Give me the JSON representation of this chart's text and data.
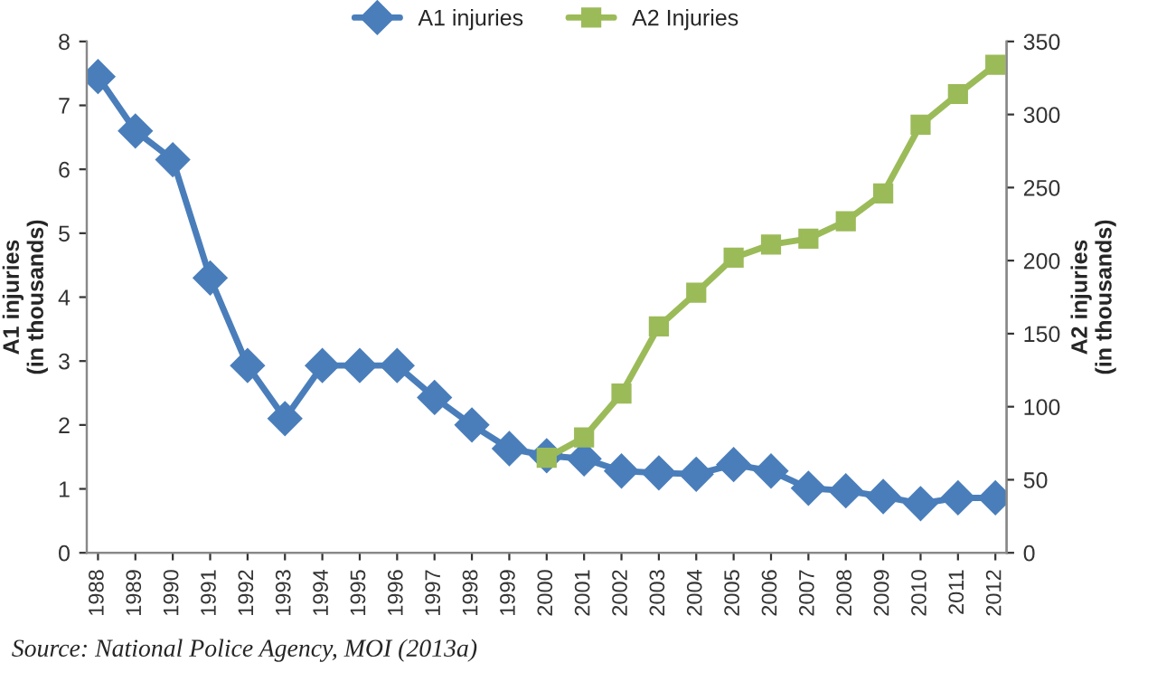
{
  "chart_data": {
    "type": "line",
    "ylabel": "A1 injuries\n(in thousands)",
    "y2label": "A2 injuries\n(in thousands)",
    "categories": [
      "1988",
      "1989",
      "1990",
      "1991",
      "1992",
      "1993",
      "1994",
      "1995",
      "1996",
      "1997",
      "1998",
      "1999",
      "2000",
      "2001",
      "2002",
      "2003",
      "2004",
      "2005",
      "2006",
      "2007",
      "2008",
      "2009",
      "2010",
      "2011",
      "2012"
    ],
    "series": [
      {
        "name": "A1 injuries",
        "color": "#4a7ebb",
        "marker": "diamond",
        "values": [
          7.45,
          6.6,
          6.15,
          4.3,
          2.93,
          2.1,
          2.93,
          2.93,
          2.93,
          2.43,
          2.0,
          1.63,
          1.52,
          1.47,
          1.28,
          1.25,
          1.23,
          1.38,
          1.28,
          1.01,
          0.97,
          0.88,
          0.77,
          0.86,
          0.86
        ]
      },
      {
        "name": "A2 Injuries",
        "color": "#9bbb59",
        "marker": "square",
        "axis": "y2",
        "values": [
          null,
          null,
          null,
          null,
          null,
          null,
          null,
          null,
          null,
          null,
          null,
          null,
          65,
          79,
          109,
          155,
          178,
          202,
          211,
          215,
          227,
          246,
          293,
          314,
          334
        ]
      }
    ],
    "ylim": [
      0,
      8
    ],
    "yticks": [
      0,
      1,
      2,
      3,
      4,
      5,
      6,
      7,
      8
    ],
    "y2lim": [
      0,
      350
    ],
    "y2ticks": [
      0,
      50,
      100,
      150,
      200,
      250,
      300,
      350
    ],
    "legend": "top",
    "grid": false,
    "line_style": "solid",
    "annotations": [
      "Source: National Police Agency, MOI (2013a)"
    ]
  }
}
